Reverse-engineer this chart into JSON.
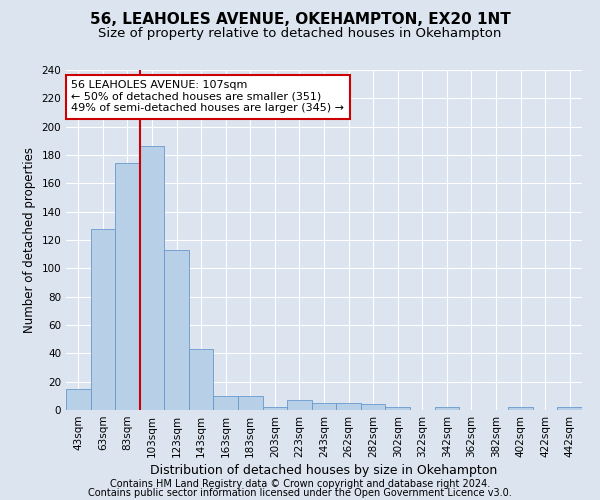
{
  "title1": "56, LEAHOLES AVENUE, OKEHAMPTON, EX20 1NT",
  "title2": "Size of property relative to detached houses in Okehampton",
  "xlabel": "Distribution of detached houses by size in Okehampton",
  "ylabel": "Number of detached properties",
  "footer1": "Contains HM Land Registry data © Crown copyright and database right 2024.",
  "footer2": "Contains public sector information licensed under the Open Government Licence v3.0.",
  "bin_labels": [
    "43sqm",
    "63sqm",
    "83sqm",
    "103sqm",
    "123sqm",
    "143sqm",
    "163sqm",
    "183sqm",
    "203sqm",
    "223sqm",
    "243sqm",
    "262sqm",
    "282sqm",
    "302sqm",
    "322sqm",
    "342sqm",
    "362sqm",
    "382sqm",
    "402sqm",
    "422sqm",
    "442sqm"
  ],
  "bar_values": [
    15,
    128,
    174,
    186,
    113,
    43,
    10,
    10,
    2,
    7,
    5,
    5,
    4,
    2,
    0,
    2,
    0,
    0,
    2,
    0,
    2
  ],
  "bar_color": "#b8cfe8",
  "bar_edge_color": "#6699cc",
  "annotation_text": "56 LEAHOLES AVENUE: 107sqm\n← 50% of detached houses are smaller (351)\n49% of semi-detached houses are larger (345) →",
  "annotation_box_color": "#ffffff",
  "annotation_box_edge_color": "#cc0000",
  "vline_color": "#cc0000",
  "vline_bin_index": 3,
  "ylim": [
    0,
    240
  ],
  "yticks": [
    0,
    20,
    40,
    60,
    80,
    100,
    120,
    140,
    160,
    180,
    200,
    220,
    240
  ],
  "bg_color": "#dce4f0",
  "plot_bg_color": "#dce4f0",
  "grid_color": "#ffffff",
  "title1_fontsize": 11,
  "title2_fontsize": 9.5,
  "xlabel_fontsize": 9,
  "ylabel_fontsize": 8.5,
  "annotation_fontsize": 8,
  "footer_fontsize": 7,
  "tick_labelsize": 7.5
}
